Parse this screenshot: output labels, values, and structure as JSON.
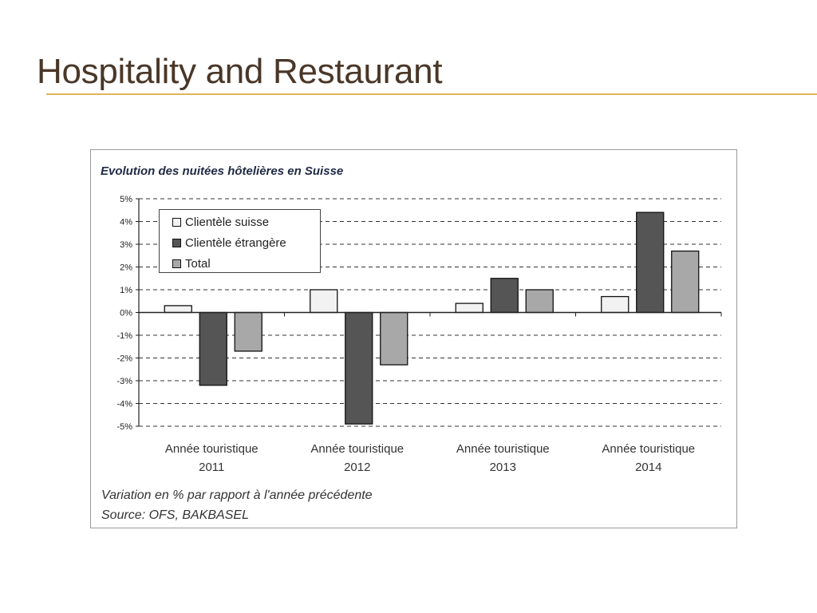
{
  "slide": {
    "title": "Hospitality and Restaurant"
  },
  "chart_data": {
    "type": "bar",
    "title": "Evolution des nuitées hôtelières en Suisse",
    "categories": [
      [
        "Année touristique",
        "2011"
      ],
      [
        "Année touristique",
        "2012"
      ],
      [
        "Année touristique",
        "2013"
      ],
      [
        "Année touristique",
        "2014"
      ]
    ],
    "series": [
      {
        "name": "Clientèle suisse",
        "values": [
          0.3,
          1.0,
          0.4,
          0.7
        ],
        "color": "#f2f2f2"
      },
      {
        "name": "Clientèle étrangère",
        "values": [
          -3.2,
          -4.9,
          1.5,
          4.4
        ],
        "color": "#555555"
      },
      {
        "name": "Total",
        "values": [
          -1.7,
          -2.3,
          1.0,
          2.7
        ],
        "color": "#a8a8a8"
      }
    ],
    "ylim": [
      -5,
      5
    ],
    "yticks": [
      "-5%",
      "-4%",
      "-3%",
      "-2%",
      "-1%",
      "0%",
      "1%",
      "2%",
      "3%",
      "4%",
      "5%"
    ],
    "grid": true,
    "legend": "top-left",
    "notes": [
      "Variation en % par rapport à l'année précédente",
      "Source: OFS, BAKBASEL"
    ]
  }
}
